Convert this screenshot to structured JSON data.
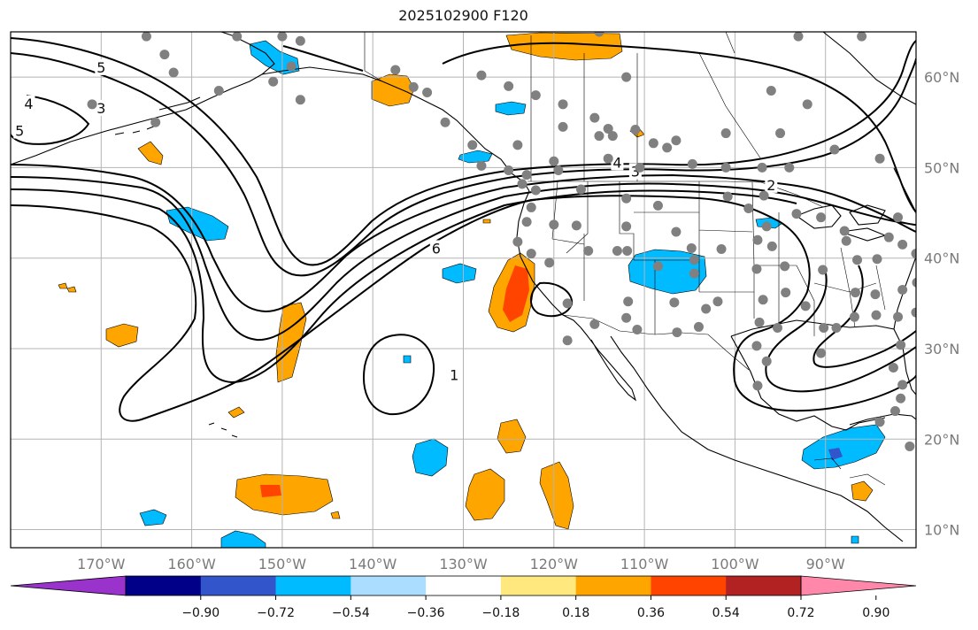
{
  "title": "2025102900 F120",
  "map": {
    "lon_range": [
      -180,
      -80
    ],
    "lat_range": [
      8,
      65
    ],
    "lon_ticks": [
      {
        "lon": -170,
        "label": "170°W"
      },
      {
        "lon": -160,
        "label": "160°W"
      },
      {
        "lon": -150,
        "label": "150°W"
      },
      {
        "lon": -140,
        "label": "140°W"
      },
      {
        "lon": -130,
        "label": "130°W"
      },
      {
        "lon": -120,
        "label": "120°W"
      },
      {
        "lon": -110,
        "label": "110°W"
      },
      {
        "lon": -100,
        "label": "100°W"
      },
      {
        "lon": -90,
        "label": "90°W"
      }
    ],
    "lat_ticks": [
      {
        "lat": 10,
        "label": "10°N"
      },
      {
        "lat": 20,
        "label": "20°N"
      },
      {
        "lat": 30,
        "label": "30°N"
      },
      {
        "lat": 40,
        "label": "40°N"
      },
      {
        "lat": 50,
        "label": "50°N"
      },
      {
        "lat": 60,
        "label": "60°N"
      }
    ],
    "grid": true,
    "contour_labels": [
      {
        "text": "5",
        "lon": -179,
        "lat": 54
      },
      {
        "text": "4",
        "lon": -178,
        "lat": 57
      },
      {
        "text": "5",
        "lon": -170,
        "lat": 61
      },
      {
        "text": "3",
        "lon": -170,
        "lat": 56.5
      },
      {
        "text": "6",
        "lon": -133,
        "lat": 41
      },
      {
        "text": "4",
        "lon": -113,
        "lat": 50.5
      },
      {
        "text": "3",
        "lon": -111,
        "lat": 49.5
      },
      {
        "text": "2",
        "lon": -96,
        "lat": 48
      },
      {
        "text": "1",
        "lon": -131,
        "lat": 27
      }
    ],
    "stations": [
      [
        -165,
        64.5
      ],
      [
        -155,
        64.5
      ],
      [
        -150,
        64.5
      ],
      [
        -148,
        64
      ],
      [
        -163,
        62.5
      ],
      [
        -149,
        61.2
      ],
      [
        -162,
        60.5
      ],
      [
        -151,
        59.5
      ],
      [
        -157,
        58.5
      ],
      [
        -148,
        57.5
      ],
      [
        -171,
        57
      ],
      [
        -164,
        55
      ],
      [
        -134,
        58.3
      ],
      [
        -135.5,
        58.9
      ],
      [
        -128,
        60.2
      ],
      [
        -125,
        59
      ],
      [
        -132,
        55
      ],
      [
        -122,
        58
      ],
      [
        -119,
        57
      ],
      [
        -115.5,
        55.5
      ],
      [
        -114,
        54.3
      ],
      [
        -115,
        53.5
      ],
      [
        -113.5,
        53.5
      ],
      [
        -111,
        54.2
      ],
      [
        -109,
        52.7
      ],
      [
        -107.5,
        52.2
      ],
      [
        -106.5,
        53
      ],
      [
        -101,
        53.8
      ],
      [
        -95,
        53.8
      ],
      [
        -92,
        57
      ],
      [
        -89,
        52
      ],
      [
        -84,
        51
      ],
      [
        -96,
        58.5
      ],
      [
        -112,
        60
      ],
      [
        -119,
        54.5
      ],
      [
        -115,
        65
      ],
      [
        -86,
        64.5
      ],
      [
        -93,
        64.5
      ],
      [
        -97,
        50
      ],
      [
        -94,
        50
      ],
      [
        -101,
        50
      ],
      [
        -104.7,
        50.4
      ],
      [
        -110.5,
        50
      ],
      [
        -114,
        51
      ],
      [
        -120,
        50.7
      ],
      [
        -119.5,
        49.7
      ],
      [
        -123,
        49.2
      ],
      [
        -125,
        49.7
      ],
      [
        -128,
        50.2
      ],
      [
        -123.5,
        48.2
      ],
      [
        -122,
        47.5
      ],
      [
        -117,
        47.6
      ],
      [
        -112,
        46.6
      ],
      [
        -108.5,
        45.8
      ],
      [
        -106.5,
        42.9
      ],
      [
        -104.8,
        41.1
      ],
      [
        -100.8,
        46.8
      ],
      [
        -96.8,
        46.9
      ],
      [
        -98.5,
        45.5
      ],
      [
        -93.2,
        44.9
      ],
      [
        -96.5,
        43.5
      ],
      [
        -90.5,
        44.5
      ],
      [
        -87.9,
        43
      ],
      [
        -83,
        42.3
      ],
      [
        -81.5,
        41.5
      ],
      [
        -84.3,
        39.9
      ],
      [
        -86.5,
        39.8
      ],
      [
        -87.7,
        41.9
      ],
      [
        -80,
        40.5
      ],
      [
        -82,
        44.5
      ],
      [
        -122.5,
        45.6
      ],
      [
        -123,
        44
      ],
      [
        -117.5,
        43.6
      ],
      [
        -112,
        43.5
      ],
      [
        -116.2,
        40.8
      ],
      [
        -113,
        40.8
      ],
      [
        -111.9,
        40.8
      ],
      [
        -108.5,
        39.1
      ],
      [
        -104.5,
        39.8
      ],
      [
        -101.5,
        41
      ],
      [
        -97.5,
        42
      ],
      [
        -95.9,
        41.3
      ],
      [
        -94.5,
        39.1
      ],
      [
        -97.6,
        38.8
      ],
      [
        -90.3,
        38.7
      ],
      [
        -86.7,
        36.2
      ],
      [
        -84.5,
        36
      ],
      [
        -81.5,
        36.5
      ],
      [
        -79.9,
        37.3
      ],
      [
        -80,
        34
      ],
      [
        -82,
        33.5
      ],
      [
        -84.4,
        33.7
      ],
      [
        -86.8,
        33.5
      ],
      [
        -88.8,
        32.3
      ],
      [
        -90.2,
        32.3
      ],
      [
        -92.2,
        34.7
      ],
      [
        -94.4,
        36.2
      ],
      [
        -96.9,
        35.4
      ],
      [
        -97.3,
        32.9
      ],
      [
        -95.3,
        32.3
      ],
      [
        -97.6,
        30.3
      ],
      [
        -96.5,
        28.6
      ],
      [
        -97.5,
        25.9
      ],
      [
        -90.5,
        29.5
      ],
      [
        -81.7,
        30.4
      ],
      [
        -82.5,
        27.9
      ],
      [
        -81.5,
        26
      ],
      [
        -81.7,
        24.5
      ],
      [
        -82.3,
        23.1
      ],
      [
        -84,
        21.9
      ],
      [
        -80.7,
        19.2
      ],
      [
        -101.9,
        35.2
      ],
      [
        -103.2,
        34.4
      ],
      [
        -106.7,
        35.1
      ],
      [
        -106.4,
        31.8
      ],
      [
        -111.8,
        35.2
      ],
      [
        -112,
        33.4
      ],
      [
        -115.5,
        32.7
      ],
      [
        -118.5,
        35
      ],
      [
        -120.5,
        39.5
      ],
      [
        -122.5,
        40.5
      ],
      [
        -124,
        41.8
      ],
      [
        -120,
        43.7
      ],
      [
        -104,
        32.4
      ],
      [
        -110.8,
        32.1
      ],
      [
        -104.5,
        38.3
      ],
      [
        -118.5,
        30.9
      ],
      [
        -124,
        52.5
      ],
      [
        -129,
        52.5
      ],
      [
        -137.5,
        60.8
      ]
    ]
  },
  "colorbar": {
    "colors": [
      "#9933cc",
      "#000088",
      "#3355cc",
      "#00bbff",
      "#aaddff",
      "#ffffff",
      "#ffe97f",
      "#ffa500",
      "#ff4400",
      "#b22222",
      "#ff88aa"
    ],
    "tick_labels": [
      "−0.90",
      "−0.72",
      "−0.54",
      "−0.36",
      "−0.18",
      "0.18",
      "0.36",
      "0.54",
      "0.72",
      "0.90"
    ]
  },
  "colors": {
    "positive_low": "#ffa500",
    "positive_mid": "#ff4400",
    "negative_low": "#00bbff",
    "negative_mid": "#3355cc",
    "contour": "#000000",
    "station": "#808080",
    "grid": "#b4b4b4"
  }
}
